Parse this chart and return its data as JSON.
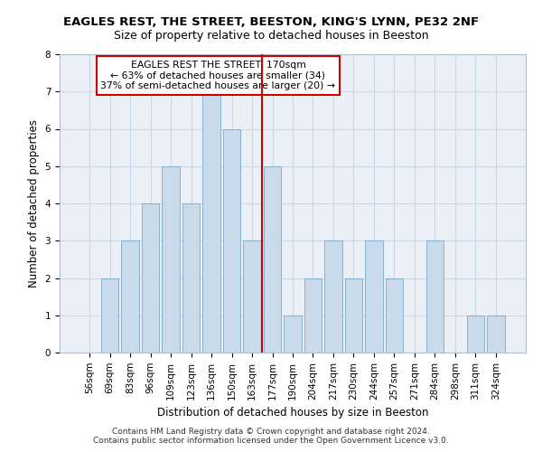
{
  "title": "EAGLES REST, THE STREET, BEESTON, KING'S LYNN, PE32 2NF",
  "subtitle": "Size of property relative to detached houses in Beeston",
  "xlabel": "Distribution of detached houses by size in Beeston",
  "ylabel": "Number of detached properties",
  "categories": [
    "56sqm",
    "69sqm",
    "83sqm",
    "96sqm",
    "109sqm",
    "123sqm",
    "136sqm",
    "150sqm",
    "163sqm",
    "177sqm",
    "190sqm",
    "204sqm",
    "217sqm",
    "230sqm",
    "244sqm",
    "257sqm",
    "271sqm",
    "284sqm",
    "298sqm",
    "311sqm",
    "324sqm"
  ],
  "values": [
    0,
    2,
    3,
    4,
    5,
    4,
    7,
    6,
    3,
    5,
    1,
    2,
    3,
    2,
    3,
    2,
    0,
    3,
    0,
    1,
    1
  ],
  "bar_color": "#c9daea",
  "bar_edge_color": "#7aaac8",
  "grid_color": "#c8d8e8",
  "background_color": "#eaf0f6",
  "vline_x_index": 8.5,
  "vline_color": "#cc0000",
  "annotation_text": "EAGLES REST THE STREET: 170sqm\n← 63% of detached houses are smaller (34)\n37% of semi-detached houses are larger (20) →",
  "annotation_box_color": "#ffffff",
  "annotation_box_edge_color": "#cc0000",
  "ylim": [
    0,
    8
  ],
  "yticks": [
    0,
    1,
    2,
    3,
    4,
    5,
    6,
    7,
    8
  ],
  "footer": "Contains HM Land Registry data © Crown copyright and database right 2024.\nContains public sector information licensed under the Open Government Licence v3.0.",
  "title_fontsize": 9.5,
  "subtitle_fontsize": 9,
  "ylabel_fontsize": 8.5,
  "xlabel_fontsize": 8.5,
  "tick_fontsize": 7.5,
  "footer_fontsize": 6.5,
  "annot_fontsize": 7.8
}
